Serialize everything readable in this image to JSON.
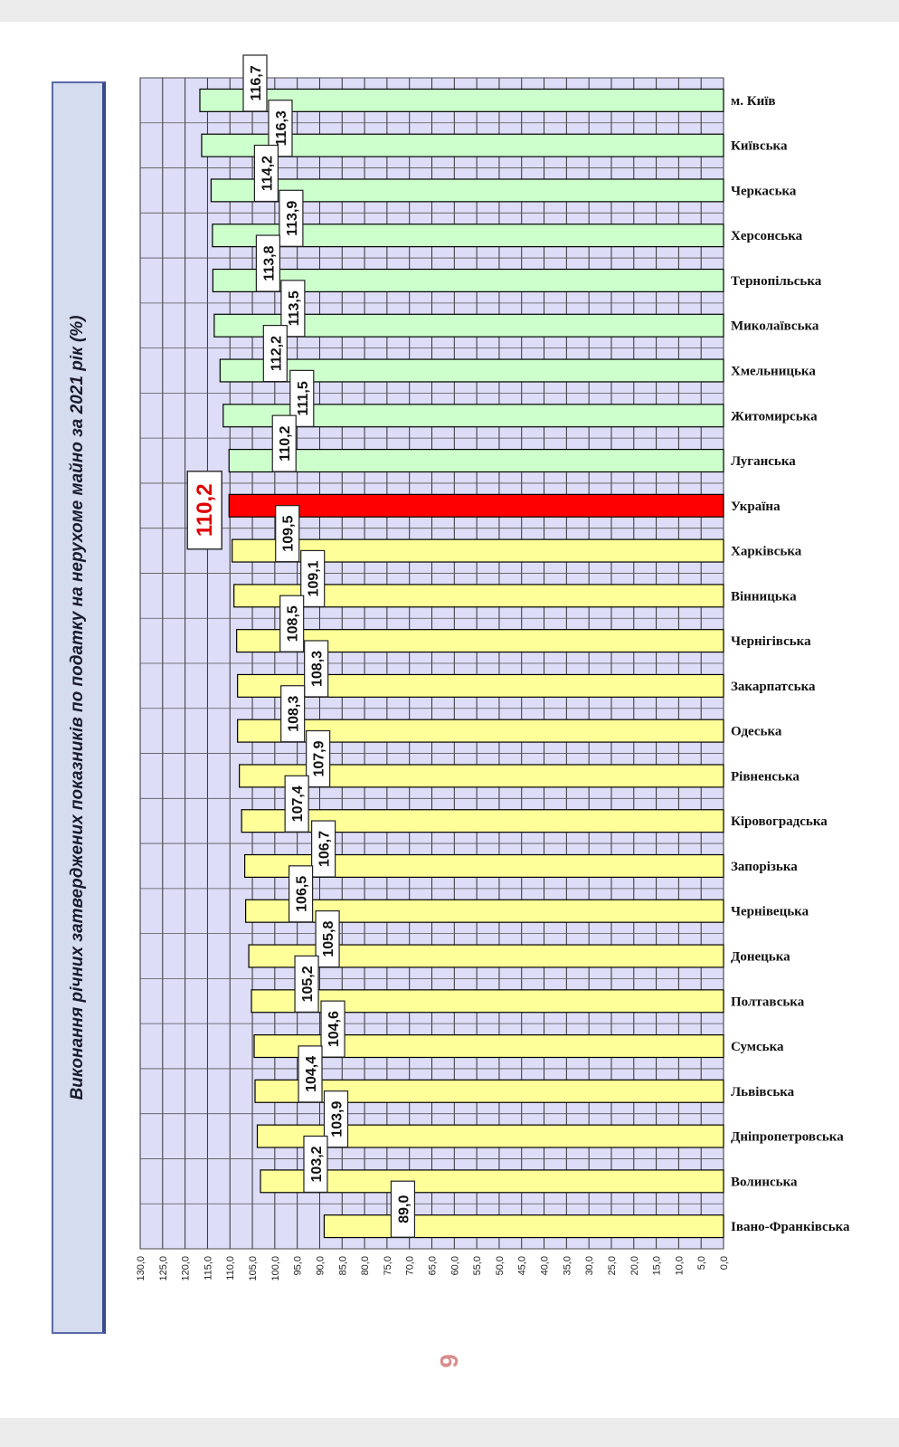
{
  "page_number": "9",
  "chart_data": {
    "type": "bar",
    "orientation": "horizontal",
    "title": "Виконання річних затверджених показників по податку на нерухоме майно за 2021 рік (%)",
    "xlim": [
      0,
      130
    ],
    "tick_step": 5,
    "tick_labels": [
      "0,0",
      "5,0",
      "10,0",
      "15,0",
      "20,0",
      "25,0",
      "30,0",
      "35,0",
      "40,0",
      "45,0",
      "50,0",
      "55,0",
      "60,0",
      "65,0",
      "70,0",
      "75,0",
      "80,0",
      "85,0",
      "90,0",
      "95,0",
      "100,0",
      "105,0",
      "110,0",
      "115,0",
      "120,0",
      "125,0",
      "130,0"
    ],
    "categories": [
      "м. Київ",
      "Київська",
      "Черкаська",
      "Херсонська",
      "Тернопільська",
      "Миколаївська",
      "Хмельницька",
      "Житомирська",
      "Луганська",
      "Україна",
      "Харківська",
      "Вінницька",
      "Чернігівська",
      "Закарпатська",
      "Одеська",
      "Рівненська",
      "Кіровоградська",
      "Запорізька",
      "Чернівецька",
      "Донецька",
      "Полтавська",
      "Сумська",
      "Львівська",
      "Дніпропетровська",
      "Волинська",
      "Івано-Франківська"
    ],
    "values": [
      116.7,
      116.3,
      114.2,
      113.9,
      113.8,
      113.5,
      112.2,
      111.5,
      110.2,
      110.2,
      109.5,
      109.1,
      108.5,
      108.3,
      108.3,
      107.9,
      107.4,
      106.7,
      106.5,
      105.8,
      105.2,
      104.6,
      104.4,
      103.9,
      103.2,
      89.0
    ],
    "value_labels": [
      "116,7",
      "116,3",
      "114,2",
      "113,9",
      "113,8",
      "113,5",
      "112,2",
      "111,5",
      "110,2",
      "110,2",
      "109,5",
      "109,1",
      "108,5",
      "108,3",
      "108,3",
      "107,9",
      "107,4",
      "106,7",
      "106,5",
      "105,8",
      "105,2",
      "104,6",
      "104,4",
      "103,9",
      "103,2",
      "89,0"
    ],
    "highlight_index": 9,
    "colors": {
      "above_average": "#ccffcc",
      "below_average": "#ffff99",
      "highlight": "#ff0000",
      "plot_background": "#ddddf8",
      "bar_outline": "#000000",
      "highlight_label": "#e00000"
    }
  }
}
